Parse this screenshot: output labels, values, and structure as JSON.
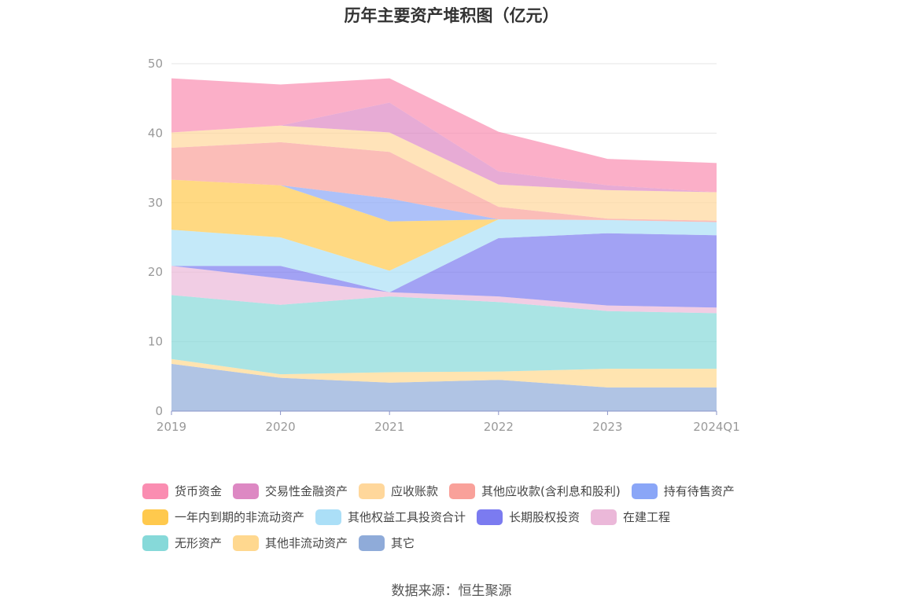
{
  "chart_data": {
    "type": "area",
    "stacked": true,
    "title": "历年主要资产堆积图（亿元）",
    "x": [
      "2019",
      "2020",
      "2021",
      "2022",
      "2023",
      "2024Q1"
    ],
    "ylim": [
      0,
      50
    ],
    "yticks": [
      0,
      10,
      20,
      30,
      40,
      50
    ],
    "grid": true,
    "legend_position": "bottom",
    "source": "数据来源：恒生聚源",
    "series": [
      {
        "name": "其它",
        "color": "#8fabd9",
        "values": [
          6.8,
          4.8,
          4.1,
          4.5,
          3.4,
          3.4
        ]
      },
      {
        "name": "其他非流动资产",
        "color": "#ffd88f",
        "values": [
          0.7,
          0.5,
          1.5,
          1.2,
          2.7,
          2.7
        ]
      },
      {
        "name": "无形资产",
        "color": "#86d9d9",
        "values": [
          9.2,
          10.0,
          10.9,
          10.0,
          8.3,
          8.0
        ]
      },
      {
        "name": "在建工程",
        "color": "#ebb8d9",
        "values": [
          4.2,
          3.8,
          0.6,
          0.8,
          0.8,
          0.8
        ]
      },
      {
        "name": "长期股权投资",
        "color": "#7b7bf0",
        "values": [
          0.0,
          1.8,
          0.0,
          8.4,
          10.4,
          10.4
        ]
      },
      {
        "name": "其他权益工具投资合计",
        "color": "#abdff7",
        "values": [
          5.2,
          4.1,
          3.1,
          2.7,
          1.9,
          1.9
        ]
      },
      {
        "name": "一年内到期的非流动资产",
        "color": "#ffc94d",
        "values": [
          7.2,
          7.5,
          7.1,
          0.0,
          0.0,
          0.0
        ]
      },
      {
        "name": "持有待售资产",
        "color": "#8aa6f7",
        "values": [
          0.0,
          0.0,
          3.3,
          0.0,
          0.0,
          0.0
        ]
      },
      {
        "name": "其他应收款(含利息和股利)",
        "color": "#f9a19a",
        "values": [
          4.6,
          6.2,
          6.7,
          1.8,
          0.2,
          0.2
        ]
      },
      {
        "name": "应收账款",
        "color": "#ffd79b",
        "values": [
          2.2,
          2.4,
          2.8,
          3.2,
          4.1,
          4.1
        ]
      },
      {
        "name": "交易性金融资产",
        "color": "#dd88c3",
        "values": [
          0.0,
          0.0,
          4.3,
          1.9,
          0.7,
          0.0
        ]
      },
      {
        "name": "货币资金",
        "color": "#fa8db1",
        "values": [
          7.8,
          5.9,
          3.5,
          5.7,
          3.8,
          4.2
        ]
      }
    ]
  },
  "legend_rows": [
    [
      0,
      1,
      2,
      3,
      4
    ],
    [
      5,
      6,
      7,
      8
    ],
    [
      9,
      10,
      11
    ]
  ],
  "legend_order": [
    "货币资金",
    "交易性金融资产",
    "应收账款",
    "其他应收款(含利息和股利)",
    "持有待售资产",
    "一年内到期的非流动资产",
    "其他权益工具投资合计",
    "长期股权投资",
    "在建工程",
    "无形资产",
    "其他非流动资产",
    "其它"
  ]
}
